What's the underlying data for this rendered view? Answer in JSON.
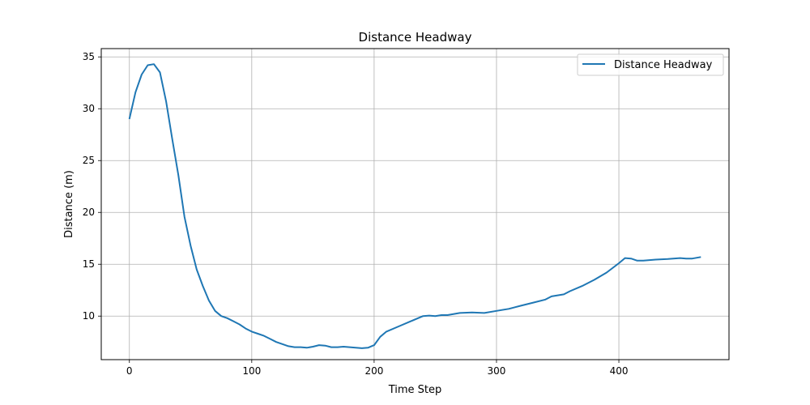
{
  "chart_data": {
    "type": "line",
    "title": "Distance Headway",
    "xlabel": "Time Step",
    "ylabel": "Distance (m)",
    "xlim": [
      -23,
      490
    ],
    "ylim": [
      5.8,
      35.8
    ],
    "xticks": [
      0,
      100,
      200,
      300,
      400
    ],
    "yticks": [
      10,
      15,
      20,
      25,
      30,
      35
    ],
    "grid": true,
    "legend_position": "top-right",
    "series": [
      {
        "name": "Distance Headway",
        "color": "#1f77b4",
        "x": [
          0,
          5,
          10,
          15,
          20,
          25,
          30,
          35,
          40,
          45,
          50,
          55,
          60,
          65,
          70,
          75,
          80,
          85,
          90,
          95,
          100,
          105,
          110,
          115,
          120,
          125,
          130,
          135,
          140,
          145,
          150,
          155,
          160,
          165,
          170,
          175,
          180,
          185,
          190,
          195,
          200,
          205,
          210,
          220,
          230,
          240,
          245,
          250,
          255,
          260,
          270,
          280,
          290,
          300,
          310,
          320,
          330,
          340,
          345,
          350,
          355,
          360,
          370,
          380,
          390,
          400,
          405,
          410,
          415,
          420,
          425,
          430,
          440,
          450,
          455,
          460,
          467
        ],
        "y": [
          29.0,
          31.6,
          33.3,
          34.2,
          34.3,
          33.5,
          30.7,
          27.1,
          23.6,
          19.6,
          16.8,
          14.5,
          12.9,
          11.5,
          10.5,
          10.0,
          9.8,
          9.5,
          9.2,
          8.8,
          8.5,
          8.3,
          8.1,
          7.8,
          7.5,
          7.3,
          7.1,
          7.0,
          7.0,
          6.95,
          7.05,
          7.2,
          7.15,
          7.0,
          7.0,
          7.05,
          7.0,
          6.95,
          6.9,
          6.95,
          7.2,
          8.0,
          8.5,
          9.0,
          9.5,
          10.0,
          10.05,
          10.0,
          10.1,
          10.1,
          10.3,
          10.35,
          10.3,
          10.5,
          10.7,
          11.0,
          11.3,
          11.6,
          11.9,
          12.0,
          12.1,
          12.4,
          12.9,
          13.5,
          14.2,
          15.1,
          15.6,
          15.55,
          15.35,
          15.35,
          15.4,
          15.45,
          15.5,
          15.6,
          15.55,
          15.55,
          15.7
        ]
      }
    ]
  }
}
